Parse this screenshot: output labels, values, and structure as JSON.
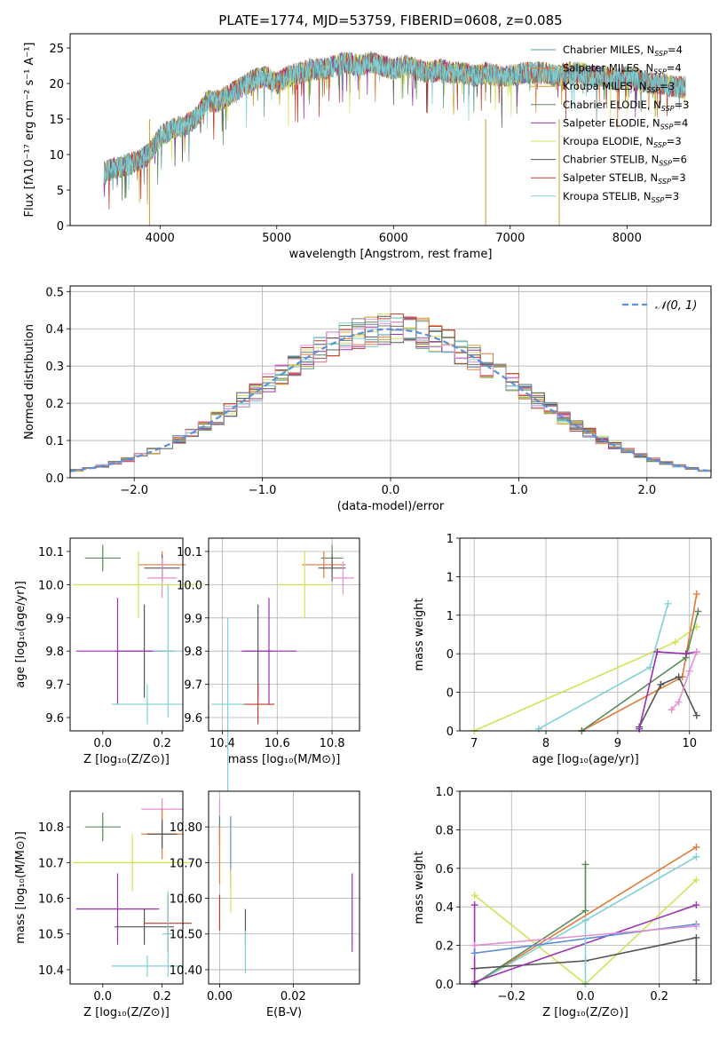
{
  "chart_data": [
    {
      "panel": "spectrum",
      "type": "line",
      "title": "PLATE=1774, MJD=53759, FIBERID=0608, z=0.085",
      "xlabel": "wavelength [Angstrom, rest frame]",
      "ylabel": "Flux [fλ10⁻¹⁷ erg cm⁻² s⁻¹ A⁻¹]",
      "xlim": [
        3230,
        8720
      ],
      "ylim": [
        0,
        27
      ],
      "xticks": [
        4000,
        5000,
        6000,
        7000,
        8000
      ],
      "yticks": [
        0,
        5,
        10,
        15,
        20,
        25
      ],
      "grid": false,
      "legend_position": "top-right",
      "legend": [
        {
          "label": "Chabrier MILES, N",
          "sub": "SSP",
          "suffix": "=4",
          "color": "#5b9aa0"
        },
        {
          "label": "Salpeter MILES, N",
          "sub": "SSP",
          "suffix": "=4",
          "color": "#e07b39"
        },
        {
          "label": "Kroupa MILES, N",
          "sub": "SSP",
          "suffix": "=3",
          "color": "#c8a030"
        },
        {
          "label": "Chabrier ELODIE, N",
          "sub": "SSP",
          "suffix": "=3",
          "color": "#5a8a5a"
        },
        {
          "label": "Salpeter ELODIE, N",
          "sub": "SSP",
          "suffix": "=4",
          "color": "#9b30b0"
        },
        {
          "label": "Kroupa ELODIE, N",
          "sub": "SSP",
          "suffix": "=3",
          "color": "#d4e157"
        },
        {
          "label": "Chabrier STELIB, N",
          "sub": "SSP",
          "suffix": "=6",
          "color": "#555555"
        },
        {
          "label": "Salpeter STELIB, N",
          "sub": "SSP",
          "suffix": "=3",
          "color": "#c0392b"
        },
        {
          "label": "Kroupa STELIB, N",
          "sub": "SSP",
          "suffix": "=3",
          "color": "#7fd0d8"
        }
      ],
      "x": [
        3520,
        3600,
        3700,
        3800,
        3900,
        4000,
        4100,
        4200,
        4300,
        4400,
        4500,
        4600,
        4700,
        4800,
        4900,
        5000,
        5100,
        5200,
        5300,
        5400,
        5500,
        5600,
        5700,
        5800,
        5900,
        6000,
        6100,
        6200,
        6300,
        6400,
        6500,
        6600,
        6700,
        6800,
        6900,
        7000,
        7100,
        7200,
        7300,
        7400,
        7500,
        7600,
        7700,
        7800,
        7900,
        8000,
        8100,
        8200,
        8300,
        8400,
        8500
      ],
      "y": [
        7.5,
        8.0,
        8.5,
        9.0,
        10.0,
        12.5,
        13.5,
        14.0,
        15.0,
        17.5,
        17.5,
        18.5,
        19.5,
        20.5,
        21.0,
        20.0,
        21.0,
        21.5,
        22.0,
        22.0,
        22.5,
        23.0,
        22.5,
        23.0,
        22.5,
        22.0,
        22.5,
        22.0,
        21.5,
        22.0,
        21.5,
        21.5,
        21.0,
        21.5,
        21.0,
        21.0,
        21.5,
        21.5,
        21.5,
        21.0,
        21.5,
        21.5,
        21.0,
        21.0,
        20.5,
        21.0,
        20.5,
        20.0,
        20.0,
        19.5,
        19.5
      ],
      "dips": [
        [
          3910,
          0
        ],
        [
          6790,
          0
        ],
        [
          7420,
          0
        ]
      ]
    },
    {
      "panel": "residual-histogram",
      "type": "line",
      "xlabel": "(data-model)/error",
      "ylabel": "Normed distribution",
      "xlim": [
        -2.5,
        2.5
      ],
      "ylim": [
        0,
        0.515
      ],
      "xticks": [
        -2,
        -1,
        0,
        1,
        2
      ],
      "yticks": [
        0.0,
        0.1,
        0.2,
        0.3,
        0.4,
        0.5
      ],
      "grid": true,
      "legend_position": "top-right",
      "legend": [
        {
          "label": "𝒩(0, 1)",
          "color": "#5b8fd6",
          "style": "dashed"
        }
      ],
      "bin_width": 0.1,
      "series_colors": [
        "#5b9aa0",
        "#e07b39",
        "#c8a030",
        "#5a8a5a",
        "#9b30b0",
        "#d4e157",
        "#555555",
        "#c0392b",
        "#7fd0d8",
        "#e48fcf",
        "#808080"
      ]
    },
    {
      "panel": "age-vs-Z",
      "type": "scatter",
      "xlabel": "Z [log₁₀(Z/Z⊙)]",
      "ylabel": "age  [log₁₀(age/yr)]",
      "xlim": [
        -0.11,
        0.27
      ],
      "ylim": [
        9.56,
        10.14
      ],
      "xticks": [
        0.0,
        0.2
      ],
      "yticks": [
        9.6,
        9.7,
        9.8,
        9.9,
        10.0,
        10.1
      ],
      "grid": false,
      "points": [
        {
          "x": 0.0,
          "y": 10.08,
          "xerr": 0.06,
          "yerr": 0.04,
          "color": "#5a8a5a"
        },
        {
          "x": 0.2,
          "y": 10.06,
          "xerr": 0.08,
          "yerr": 0.04,
          "color": "#e07b39"
        },
        {
          "x": 0.2,
          "y": 10.05,
          "xerr": 0.06,
          "yerr": 0.04,
          "color": "#555555"
        },
        {
          "x": 0.2,
          "y": 10.02,
          "xerr": 0.05,
          "yerr": 0.06,
          "color": "#e48fcf"
        },
        {
          "x": 0.12,
          "y": 10.0,
          "xerr": 0.22,
          "yerr": 0.1,
          "color": "#d4e157"
        },
        {
          "x": 0.14,
          "y": 9.8,
          "xerr": 0.1,
          "yerr": 0.14,
          "color": "#555555"
        },
        {
          "x": 0.05,
          "y": 9.8,
          "xerr": 0.14,
          "yerr": 0.16,
          "color": "#9b30b0"
        },
        {
          "x": 0.22,
          "y": 9.8,
          "xerr": 0.05,
          "yerr": 0.2,
          "color": "#7fd0d8"
        },
        {
          "x": 0.15,
          "y": 9.64,
          "xerr": 0.12,
          "yerr": 0.06,
          "color": "#7fd0d8"
        }
      ]
    },
    {
      "panel": "age-vs-mass",
      "type": "scatter",
      "xlabel": "mass [log₁₀(M/M⊙)]",
      "ylabel": "",
      "xlim": [
        10.35,
        10.9
      ],
      "ylim": [
        9.56,
        10.14
      ],
      "xticks": [
        10.4,
        10.6,
        10.8
      ],
      "yticks": [
        9.6,
        9.7,
        9.8,
        9.9,
        10.0,
        10.1
      ],
      "grid": true,
      "points": [
        {
          "x": 10.8,
          "y": 10.08,
          "xerr": 0.04,
          "yerr": 0.04,
          "color": "#5a8a5a"
        },
        {
          "x": 10.77,
          "y": 10.06,
          "xerr": 0.08,
          "yerr": 0.04,
          "color": "#e07b39"
        },
        {
          "x": 10.8,
          "y": 10.05,
          "xerr": 0.05,
          "yerr": 0.04,
          "color": "#555555"
        },
        {
          "x": 10.84,
          "y": 10.02,
          "xerr": 0.04,
          "yerr": 0.05,
          "color": "#e48fcf"
        },
        {
          "x": 10.7,
          "y": 10.0,
          "xerr": 0.1,
          "yerr": 0.1,
          "color": "#d4e157"
        },
        {
          "x": 10.53,
          "y": 9.8,
          "xerr": 0.05,
          "yerr": 0.14,
          "color": "#555555"
        },
        {
          "x": 10.57,
          "y": 9.8,
          "xerr": 0.1,
          "yerr": 0.16,
          "color": "#9b30b0"
        },
        {
          "x": 10.53,
          "y": 9.64,
          "xerr": 0.06,
          "yerr": 0.06,
          "color": "#c0392b"
        },
        {
          "x": 10.42,
          "y": 9.64,
          "xerr": 0.06,
          "yerr": 0.26,
          "color": "#7fd0d8"
        }
      ]
    },
    {
      "panel": "mass-weight-vs-age",
      "type": "line",
      "xlabel": "age  [log₁₀(age/yr)]",
      "ylabel": "mass weight",
      "xlim": [
        6.8,
        10.3
      ],
      "ylim": [
        0,
        1.0
      ],
      "xticks": [
        7,
        8,
        9,
        10
      ],
      "yticks": [
        0.0,
        0.2,
        0.4,
        0.6,
        0.8,
        1.0
      ],
      "grid": true,
      "series": [
        {
          "color": "#d4e157",
          "x": [
            7.0,
            9.8,
            10.1
          ],
          "y": [
            0.0,
            0.46,
            0.54
          ]
        },
        {
          "color": "#7fd0d8",
          "x": [
            7.9,
            9.45,
            9.7
          ],
          "y": [
            0.01,
            0.33,
            0.66
          ]
        },
        {
          "color": "#e07b39",
          "x": [
            8.5,
            9.9,
            10.1
          ],
          "y": [
            0.0,
            0.28,
            0.71
          ]
        },
        {
          "color": "#5a8a5a",
          "x": [
            8.5,
            9.95,
            10.12
          ],
          "y": [
            0.0,
            0.38,
            0.62
          ]
        },
        {
          "color": "#555555",
          "x": [
            9.3,
            9.6,
            9.85,
            10.1
          ],
          "y": [
            0.02,
            0.24,
            0.28,
            0.08
          ]
        },
        {
          "color": "#9b30b0",
          "x": [
            9.3,
            9.55,
            9.95,
            10.1
          ],
          "y": [
            0.01,
            0.41,
            0.4,
            0.41
          ]
        },
        {
          "color": "#e48fcf",
          "x": [
            9.75,
            9.85,
            10.0,
            10.1
          ],
          "y": [
            0.11,
            0.15,
            0.31,
            0.41
          ]
        }
      ]
    },
    {
      "panel": "mass-vs-Z",
      "type": "scatter",
      "xlabel": "Z [log₁₀(Z/Z⊙)]",
      "ylabel": "mass [log₁₀(M/M⊙)]",
      "xlim": [
        -0.11,
        0.27
      ],
      "ylim": [
        10.36,
        10.9
      ],
      "xticks": [
        0.0,
        0.2
      ],
      "yticks": [
        10.4,
        10.5,
        10.6,
        10.7,
        10.8
      ],
      "grid": false,
      "points": [
        {
          "x": 0.0,
          "y": 10.8,
          "xerr": 0.06,
          "yerr": 0.04,
          "color": "#5a8a5a"
        },
        {
          "x": 0.2,
          "y": 10.85,
          "xerr": 0.07,
          "yerr": 0.03,
          "color": "#e48fcf"
        },
        {
          "x": 0.2,
          "y": 10.78,
          "xerr": 0.07,
          "yerr": 0.07,
          "color": "#e07b39"
        },
        {
          "x": 0.2,
          "y": 10.78,
          "xerr": 0.05,
          "yerr": 0.04,
          "color": "#555555"
        },
        {
          "x": 0.1,
          "y": 10.7,
          "xerr": 0.2,
          "yerr": 0.08,
          "color": "#d4e157"
        },
        {
          "x": 0.05,
          "y": 10.57,
          "xerr": 0.14,
          "yerr": 0.1,
          "color": "#9b30b0"
        },
        {
          "x": 0.14,
          "y": 10.52,
          "xerr": 0.1,
          "yerr": 0.05,
          "color": "#555555"
        },
        {
          "x": 0.22,
          "y": 10.53,
          "xerr": 0.08,
          "yerr": 0.08,
          "color": "#c0392b"
        },
        {
          "x": 0.15,
          "y": 10.41,
          "xerr": 0.12,
          "yerr": 0.03,
          "color": "#7fd0d8"
        },
        {
          "x": 0.22,
          "y": 10.5,
          "xerr": 0.02,
          "yerr": 0.12,
          "color": "#7fd0d8"
        }
      ]
    },
    {
      "panel": "mass-vs-EBV",
      "type": "scatter",
      "xlabel": "E(B-V)",
      "ylabel": "",
      "xlim": [
        -0.003,
        0.038
      ],
      "ylim": [
        10.36,
        10.9
      ],
      "xticks": [
        0.0,
        0.02
      ],
      "yticks": [
        10.4,
        10.5,
        10.6,
        10.7,
        10.8
      ],
      "grid": true,
      "points": [
        {
          "x": 0.0,
          "y": 10.85,
          "xerr": 0.0,
          "yerr": 0.03,
          "color": "#e48fcf"
        },
        {
          "x": 0.0,
          "y": 10.79,
          "xerr": 0.0,
          "yerr": 0.04,
          "color": "#5a8a5a"
        },
        {
          "x": 0.0,
          "y": 10.72,
          "xerr": 0.0,
          "yerr": 0.08,
          "color": "#e07b39"
        },
        {
          "x": 0.0,
          "y": 10.56,
          "xerr": 0.0,
          "yerr": 0.05,
          "color": "#c0392b"
        },
        {
          "x": 0.003,
          "y": 10.73,
          "xerr": 0.0,
          "yerr": 0.1,
          "color": "#5b8fd6"
        },
        {
          "x": 0.003,
          "y": 10.62,
          "xerr": 0.0,
          "yerr": 0.06,
          "color": "#d4e157"
        },
        {
          "x": 0.007,
          "y": 10.52,
          "xerr": 0.0,
          "yerr": 0.05,
          "color": "#555555"
        },
        {
          "x": 0.007,
          "y": 10.45,
          "xerr": 0.0,
          "yerr": 0.06,
          "color": "#7fd0d8"
        },
        {
          "x": 0.036,
          "y": 10.56,
          "xerr": 0.0,
          "yerr": 0.11,
          "color": "#9b30b0"
        }
      ]
    },
    {
      "panel": "mass-weight-vs-Z",
      "type": "line",
      "xlabel": "Z [log₁₀(Z/Z⊙)]",
      "ylabel": "mass weight",
      "xlim": [
        -0.34,
        0.34
      ],
      "ylim": [
        0,
        1.0
      ],
      "xticks": [
        -0.2,
        0.0,
        0.2
      ],
      "yticks": [
        0.0,
        0.2,
        0.4,
        0.6,
        0.8,
        1.0
      ],
      "grid": true,
      "series": [
        {
          "color": "#d4e157",
          "x": [
            -0.3,
            0.0,
            0.3
          ],
          "y": [
            0.46,
            0.0,
            0.54
          ]
        },
        {
          "color": "#e07b39",
          "x": [
            -0.3,
            0.3
          ],
          "y": [
            0.0,
            0.71
          ]
        },
        {
          "color": "#7fd0d8",
          "x": [
            -0.3,
            0.0,
            0.3
          ],
          "y": [
            0.0,
            0.33,
            0.66
          ]
        },
        {
          "color": "#5a8a5a",
          "x": [
            -0.3,
            0.0,
            0.0
          ],
          "y": [
            0.0,
            0.38,
            0.62
          ]
        },
        {
          "color": "#555555",
          "x": [
            -0.3,
            0.0,
            0.3,
            0.3
          ],
          "y": [
            0.08,
            0.12,
            0.24,
            0.02
          ]
        },
        {
          "color": "#9b30b0",
          "x": [
            -0.3,
            -0.3,
            0.3
          ],
          "y": [
            0.41,
            0.01,
            0.41
          ]
        },
        {
          "color": "#5b8fd6",
          "x": [
            -0.3,
            0.3
          ],
          "y": [
            0.16,
            0.31
          ]
        },
        {
          "color": "#e48fcf",
          "x": [
            -0.3,
            0.3
          ],
          "y": [
            0.2,
            0.3
          ]
        },
        {
          "color": "#7fd0d8",
          "x": [
            0.0,
            0.0
          ],
          "y": [
            0.0,
            0.33
          ]
        }
      ]
    }
  ]
}
